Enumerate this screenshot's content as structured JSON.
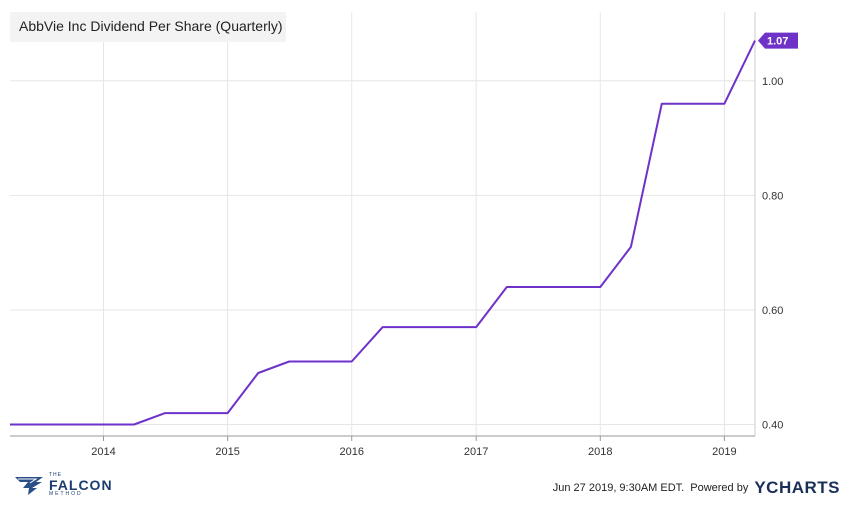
{
  "chart_data": {
    "type": "line",
    "title": "AbbVie Inc Dividend Per Share (Quarterly)",
    "xlabel": "",
    "ylabel": "",
    "x": [
      "2013-04-01",
      "2013-07-01",
      "2013-10-01",
      "2014-01-01",
      "2014-04-01",
      "2014-07-01",
      "2014-10-01",
      "2015-01-01",
      "2015-04-01",
      "2015-07-01",
      "2015-10-01",
      "2016-01-01",
      "2016-04-01",
      "2016-07-01",
      "2016-10-01",
      "2017-01-01",
      "2017-04-01",
      "2017-07-01",
      "2017-10-01",
      "2018-01-01",
      "2018-04-01",
      "2018-07-01",
      "2018-10-01",
      "2019-01-01",
      "2019-04-01"
    ],
    "series": [
      {
        "values": [
          0.4,
          0.4,
          0.4,
          0.4,
          0.4,
          0.42,
          0.42,
          0.42,
          0.49,
          0.51,
          0.51,
          0.51,
          0.57,
          0.57,
          0.57,
          0.57,
          0.64,
          0.64,
          0.64,
          0.64,
          0.71,
          0.96,
          0.96,
          0.96,
          1.07
        ],
        "color": "#6e32c9"
      }
    ],
    "x_ticks": [
      "2014",
      "2015",
      "2016",
      "2017",
      "2018",
      "2019"
    ],
    "y_ticks": [
      "0.40",
      "0.60",
      "0.80",
      "1.00"
    ],
    "ylim": [
      0.38,
      1.12
    ],
    "xlim": [
      "2013-04-01",
      "2019-04-01"
    ],
    "grid": true,
    "end_label": "1.07"
  },
  "footer": {
    "timestamp": "Jun 27 2019, 9:30AM EDT.",
    "powered_by": "Powered by",
    "ycharts": "YCHARTS",
    "falcon_the": "THE",
    "falcon_name": "FALCON",
    "falcon_method": "METHOD"
  },
  "colors": {
    "line": "#6e32c9",
    "grid": "#e6e6e6",
    "axis": "#999999"
  }
}
